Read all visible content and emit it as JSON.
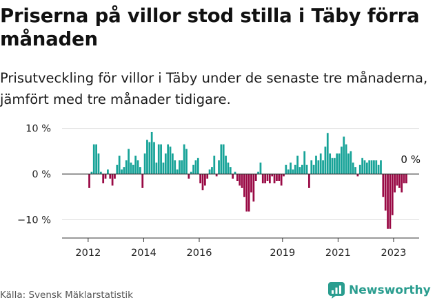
{
  "title": "Priserna på villor stod stilla i Täby förra månaden",
  "subtitle": "Prisutveckling för villor i Täby under de senaste tre månaderna, jämfört med tre månader tidigare.",
  "source": "Källa: Svensk Mäklarstatistik",
  "brand": {
    "name": "Newsworthy",
    "icon": "newsworthy-logo-icon"
  },
  "colors": {
    "positive": "#17a398",
    "negative": "#990a45",
    "axis": "#333333",
    "grid": "#dcdcdc"
  },
  "chart_data": {
    "type": "bar",
    "title": "Priserna på villor stod stilla i Täby förra månaden",
    "xlabel": "",
    "ylabel": "",
    "unit": "%",
    "ylim": [
      -14,
      11
    ],
    "xlim": [
      2011.06,
      2023.92
    ],
    "yticks": [
      {
        "value": 10,
        "label": "10 %"
      },
      {
        "value": 0,
        "label": "0 %"
      },
      {
        "value": -10,
        "label": "−10 %"
      }
    ],
    "xticks": [
      {
        "value": 2012,
        "label": "2012"
      },
      {
        "value": 2014,
        "label": "2014"
      },
      {
        "value": 2016,
        "label": "2016"
      },
      {
        "value": 2019,
        "label": "2019"
      },
      {
        "value": 2021,
        "label": "2021"
      },
      {
        "value": 2023,
        "label": "2023"
      }
    ],
    "start": [
      2012,
      1
    ],
    "annotation": {
      "label": "0 %",
      "value": 0
    },
    "values": [
      -3,
      0.5,
      6.5,
      6.5,
      4.5,
      0.5,
      -2,
      -1,
      1,
      -1,
      -2.5,
      -1,
      2,
      4,
      1,
      1.5,
      3,
      5.5,
      2.5,
      2,
      4,
      3,
      1.5,
      -3,
      4.5,
      7.5,
      7,
      9.2,
      7,
      2.5,
      6.5,
      6.5,
      2.5,
      4.5,
      6.5,
      6,
      4.5,
      3,
      1,
      3,
      3,
      6.5,
      5.5,
      -1,
      0.5,
      2,
      3,
      3.5,
      -2,
      -3.5,
      -2.5,
      -1,
      1,
      1.5,
      4,
      -0.5,
      3,
      6.5,
      6.5,
      4,
      2.5,
      1.5,
      -1,
      0.5,
      -1.5,
      -2.5,
      -3,
      -5,
      -8.2,
      -8.2,
      -4,
      -6,
      -1.5,
      0.5,
      2.5,
      -2,
      -2,
      -1.5,
      -2,
      -0.5,
      -2,
      -1.5,
      -1.5,
      -2.5,
      -0.5,
      2,
      1,
      2.5,
      1,
      2,
      4,
      1.5,
      2,
      5,
      2,
      -3,
      3,
      2,
      4,
      3,
      4.5,
      3,
      6,
      9,
      4.5,
      3.5,
      3.5,
      4.5,
      4.5,
      6,
      8.2,
      6.5,
      4.5,
      5,
      2.5,
      1.5,
      -0.5,
      2,
      3.5,
      3,
      2.5,
      3,
      3,
      3,
      3,
      2,
      3,
      -5,
      -8,
      -12,
      -12,
      -9,
      -4,
      -2.5,
      -3,
      -4,
      -2,
      -2
    ]
  }
}
